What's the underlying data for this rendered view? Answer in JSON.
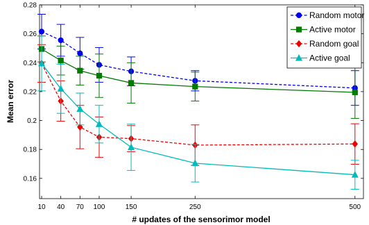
{
  "chart_data": {
    "type": "line",
    "title": "",
    "xlabel": "# updates of the sensorimor model",
    "ylabel": "Mean error",
    "x": [
      10,
      40,
      70,
      100,
      150,
      250,
      500
    ],
    "x_tick_labels": [
      "10",
      "40",
      "70",
      "100",
      "150",
      "250",
      "500"
    ],
    "y_ticks": [
      0.16,
      0.18,
      0.2,
      0.22,
      0.24,
      0.26,
      0.28
    ],
    "y_tick_labels": [
      "0.16",
      "0.18",
      "0.2",
      "0.22",
      "0.24",
      "0.26",
      "0.28"
    ],
    "xlim": [
      10,
      510
    ],
    "ylim": [
      0.146,
      0.28
    ],
    "grid": false,
    "legend_position": "top-right",
    "x_scale": "categorical-spacing",
    "series": [
      {
        "name": "Random motor",
        "color": "#0000ee",
        "marker": "circle",
        "line_style": "dashed",
        "values": [
          0.2615,
          0.2555,
          0.2465,
          0.2385,
          0.234,
          0.2275,
          0.2225
        ],
        "error": [
          0.012,
          0.011,
          0.011,
          0.012,
          0.01,
          0.007,
          0.012
        ]
      },
      {
        "name": "Active motor",
        "color": "#007a00",
        "marker": "square",
        "line_style": "solid",
        "values": [
          0.2495,
          0.2415,
          0.2345,
          0.231,
          0.226,
          0.2235,
          0.2195
        ],
        "error": [
          0.009,
          0.01,
          0.01,
          0.015,
          0.014,
          0.01,
          0.018
        ]
      },
      {
        "name": "Random goal",
        "color": "#ee0000",
        "marker": "diamond",
        "line_style": "dashed",
        "values": [
          0.2395,
          0.2135,
          0.1955,
          0.1885,
          0.1875,
          0.183,
          0.1838
        ],
        "error": [
          0.013,
          0.014,
          0.015,
          0.014,
          0.009,
          0.014,
          0.014
        ]
      },
      {
        "name": "Active goal",
        "color": "#00bbbb",
        "marker": "triangle",
        "line_style": "solid",
        "values": [
          0.2395,
          0.222,
          0.208,
          0.1975,
          0.1815,
          0.1705,
          0.1625
        ],
        "error": [
          0.019,
          0.017,
          0.011,
          0.013,
          0.016,
          0.013,
          0.01
        ]
      }
    ]
  }
}
